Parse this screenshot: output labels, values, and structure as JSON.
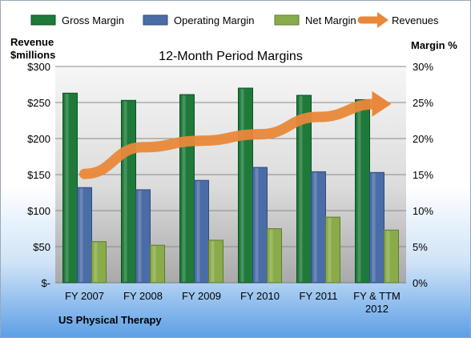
{
  "chart_data": {
    "type": "bar",
    "title": "12-Month Period Margins",
    "subtitle": "US Physical Therapy",
    "ylabel_left_line1": "Revenue",
    "ylabel_left_line2": "$millions",
    "ylabel_right": "Margin %",
    "categories": [
      [
        "FY 2007"
      ],
      [
        "FY 2008"
      ],
      [
        "FY 2009"
      ],
      [
        "FY 2010"
      ],
      [
        "FY 2011"
      ],
      [
        "FY & TTM",
        "2012"
      ]
    ],
    "left_axis": {
      "ylim": [
        0,
        300
      ],
      "ticks": [
        "$-",
        "$50",
        "$100",
        "$150",
        "$200",
        "$250",
        "$300"
      ]
    },
    "right_axis": {
      "ylim": [
        0,
        30
      ],
      "ticks": [
        "0%",
        "5%",
        "10%",
        "15%",
        "20%",
        "25%",
        "30%"
      ]
    },
    "grid": true,
    "legend_position": "top",
    "series": [
      {
        "name": "Gross Margin",
        "kind": "bar",
        "axis": "right",
        "color": "#1f7a3a",
        "values": [
          26.3,
          25.3,
          26.1,
          27.0,
          26.0,
          25.4
        ]
      },
      {
        "name": "Operating Margin",
        "kind": "bar",
        "axis": "right",
        "color": "#4a6da7",
        "values": [
          13.2,
          12.9,
          14.2,
          16.0,
          15.4,
          15.3
        ]
      },
      {
        "name": "Net Margin",
        "kind": "bar",
        "axis": "right",
        "color": "#8aab4a",
        "values": [
          5.7,
          5.2,
          5.9,
          7.5,
          9.1,
          7.3
        ]
      },
      {
        "name": "Revenues",
        "kind": "line",
        "axis": "left",
        "color": "#e9883a",
        "values": [
          151,
          188,
          197,
          206,
          230,
          248
        ]
      }
    ]
  }
}
